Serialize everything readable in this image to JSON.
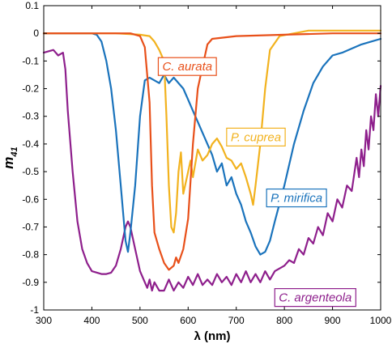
{
  "chart_data": {
    "type": "line",
    "xlabel": "λ (nm)",
    "ylabel": "m",
    "ylabel_subscript": "41",
    "xlim": [
      300,
      1000
    ],
    "ylim": [
      -1,
      0.1
    ],
    "xticks": [
      "300",
      "400",
      "500",
      "600",
      "700",
      "800",
      "900",
      "1000"
    ],
    "yticks": [
      "0.1",
      "0",
      "-0.1",
      "-0.2",
      "-0.3",
      "-0.4",
      "-0.5",
      "-0.6",
      "-0.7",
      "-0.8",
      "-0.9",
      "-1"
    ],
    "grid": false,
    "series": [
      {
        "name": "C. aurata",
        "color": "#E8501A",
        "points": [
          [
            300,
            0.0
          ],
          [
            400,
            0.0
          ],
          [
            480,
            0.0
          ],
          [
            500,
            -0.01
          ],
          [
            510,
            -0.05
          ],
          [
            520,
            -0.25
          ],
          [
            525,
            -0.55
          ],
          [
            530,
            -0.72
          ],
          [
            540,
            -0.78
          ],
          [
            550,
            -0.83
          ],
          [
            560,
            -0.855
          ],
          [
            570,
            -0.84
          ],
          [
            575,
            -0.81
          ],
          [
            580,
            -0.83
          ],
          [
            590,
            -0.78
          ],
          [
            600,
            -0.67
          ],
          [
            610,
            -0.4
          ],
          [
            615,
            -0.3
          ],
          [
            620,
            -0.2
          ],
          [
            630,
            -0.12
          ],
          [
            640,
            -0.04
          ],
          [
            650,
            -0.02
          ],
          [
            700,
            -0.01
          ],
          [
            800,
            -0.005
          ],
          [
            900,
            0.0
          ],
          [
            1000,
            0.0
          ]
        ]
      },
      {
        "name": "P. cuprea",
        "color": "#F2B21E",
        "points": [
          [
            300,
            0.0
          ],
          [
            450,
            0.0
          ],
          [
            500,
            -0.005
          ],
          [
            520,
            -0.01
          ],
          [
            530,
            -0.03
          ],
          [
            540,
            -0.06
          ],
          [
            550,
            -0.1
          ],
          [
            555,
            -0.3
          ],
          [
            560,
            -0.55
          ],
          [
            565,
            -0.7
          ],
          [
            570,
            -0.72
          ],
          [
            575,
            -0.65
          ],
          [
            580,
            -0.5
          ],
          [
            585,
            -0.43
          ],
          [
            590,
            -0.58
          ],
          [
            600,
            -0.5
          ],
          [
            605,
            -0.46
          ],
          [
            610,
            -0.52
          ],
          [
            620,
            -0.42
          ],
          [
            630,
            -0.46
          ],
          [
            640,
            -0.44
          ],
          [
            650,
            -0.4
          ],
          [
            660,
            -0.38
          ],
          [
            670,
            -0.41
          ],
          [
            680,
            -0.45
          ],
          [
            690,
            -0.46
          ],
          [
            700,
            -0.49
          ],
          [
            710,
            -0.47
          ],
          [
            720,
            -0.52
          ],
          [
            730,
            -0.58
          ],
          [
            735,
            -0.62
          ],
          [
            740,
            -0.55
          ],
          [
            750,
            -0.4
          ],
          [
            760,
            -0.2
          ],
          [
            770,
            -0.06
          ],
          [
            790,
            -0.01
          ],
          [
            850,
            0.01
          ],
          [
            1000,
            0.01
          ]
        ]
      },
      {
        "name": "P. mirifica",
        "color": "#1A73BC",
        "points": [
          [
            300,
            0.0
          ],
          [
            400,
            0.0
          ],
          [
            410,
            -0.005
          ],
          [
            420,
            -0.03
          ],
          [
            430,
            -0.1
          ],
          [
            440,
            -0.2
          ],
          [
            450,
            -0.35
          ],
          [
            460,
            -0.55
          ],
          [
            470,
            -0.75
          ],
          [
            475,
            -0.79
          ],
          [
            480,
            -0.72
          ],
          [
            490,
            -0.55
          ],
          [
            500,
            -0.3
          ],
          [
            510,
            -0.17
          ],
          [
            520,
            -0.16
          ],
          [
            540,
            -0.18
          ],
          [
            550,
            -0.15
          ],
          [
            560,
            -0.18
          ],
          [
            570,
            -0.16
          ],
          [
            590,
            -0.2
          ],
          [
            600,
            -0.24
          ],
          [
            610,
            -0.28
          ],
          [
            620,
            -0.32
          ],
          [
            630,
            -0.36
          ],
          [
            640,
            -0.4
          ],
          [
            650,
            -0.44
          ],
          [
            660,
            -0.5
          ],
          [
            670,
            -0.47
          ],
          [
            680,
            -0.55
          ],
          [
            690,
            -0.52
          ],
          [
            700,
            -0.58
          ],
          [
            710,
            -0.62
          ],
          [
            720,
            -0.68
          ],
          [
            730,
            -0.72
          ],
          [
            740,
            -0.77
          ],
          [
            750,
            -0.8
          ],
          [
            760,
            -0.79
          ],
          [
            770,
            -0.75
          ],
          [
            780,
            -0.68
          ],
          [
            800,
            -0.55
          ],
          [
            820,
            -0.4
          ],
          [
            840,
            -0.28
          ],
          [
            860,
            -0.18
          ],
          [
            880,
            -0.12
          ],
          [
            900,
            -0.08
          ],
          [
            920,
            -0.07
          ],
          [
            940,
            -0.055
          ],
          [
            960,
            -0.04
          ],
          [
            980,
            -0.03
          ],
          [
            1000,
            -0.02
          ]
        ]
      },
      {
        "name": "C. argenteola",
        "color": "#8E1F8C",
        "points": [
          [
            300,
            -0.07
          ],
          [
            320,
            -0.06
          ],
          [
            330,
            -0.08
          ],
          [
            340,
            -0.07
          ],
          [
            345,
            -0.13
          ],
          [
            350,
            -0.28
          ],
          [
            360,
            -0.5
          ],
          [
            370,
            -0.68
          ],
          [
            380,
            -0.78
          ],
          [
            390,
            -0.83
          ],
          [
            400,
            -0.86
          ],
          [
            420,
            -0.87
          ],
          [
            430,
            -0.87
          ],
          [
            440,
            -0.865
          ],
          [
            450,
            -0.84
          ],
          [
            460,
            -0.78
          ],
          [
            470,
            -0.7
          ],
          [
            475,
            -0.68
          ],
          [
            480,
            -0.7
          ],
          [
            490,
            -0.78
          ],
          [
            500,
            -0.86
          ],
          [
            510,
            -0.9
          ],
          [
            515,
            -0.92
          ],
          [
            520,
            -0.89
          ],
          [
            525,
            -0.93
          ],
          [
            530,
            -0.9
          ],
          [
            540,
            -0.93
          ],
          [
            550,
            -0.93
          ],
          [
            560,
            -0.89
          ],
          [
            570,
            -0.93
          ],
          [
            580,
            -0.9
          ],
          [
            590,
            -0.92
          ],
          [
            600,
            -0.88
          ],
          [
            610,
            -0.91
          ],
          [
            620,
            -0.87
          ],
          [
            630,
            -0.91
          ],
          [
            640,
            -0.89
          ],
          [
            650,
            -0.91
          ],
          [
            660,
            -0.87
          ],
          [
            670,
            -0.9
          ],
          [
            680,
            -0.88
          ],
          [
            690,
            -0.91
          ],
          [
            700,
            -0.87
          ],
          [
            710,
            -0.9
          ],
          [
            720,
            -0.86
          ],
          [
            730,
            -0.9
          ],
          [
            740,
            -0.87
          ],
          [
            750,
            -0.9
          ],
          [
            760,
            -0.86
          ],
          [
            770,
            -0.89
          ],
          [
            780,
            -0.86
          ],
          [
            790,
            -0.85
          ],
          [
            800,
            -0.84
          ],
          [
            810,
            -0.82
          ],
          [
            820,
            -0.83
          ],
          [
            830,
            -0.78
          ],
          [
            840,
            -0.8
          ],
          [
            850,
            -0.74
          ],
          [
            860,
            -0.76
          ],
          [
            870,
            -0.7
          ],
          [
            880,
            -0.73
          ],
          [
            890,
            -0.65
          ],
          [
            900,
            -0.68
          ],
          [
            910,
            -0.6
          ],
          [
            920,
            -0.63
          ],
          [
            930,
            -0.55
          ],
          [
            940,
            -0.57
          ],
          [
            950,
            -0.45
          ],
          [
            955,
            -0.52
          ],
          [
            960,
            -0.42
          ],
          [
            965,
            -0.48
          ],
          [
            970,
            -0.35
          ],
          [
            975,
            -0.42
          ],
          [
            980,
            -0.3
          ],
          [
            985,
            -0.35
          ],
          [
            990,
            -0.22
          ],
          [
            995,
            -0.3
          ],
          [
            1000,
            -0.19
          ]
        ]
      }
    ],
    "legend": [
      {
        "name": "C. aurata",
        "color": "#E8501A",
        "placement": "upper-center"
      },
      {
        "name": "P. cuprea",
        "color": "#F2B21E",
        "placement": "center-right"
      },
      {
        "name": "P. mirifica",
        "color": "#1A73BC",
        "placement": "right"
      },
      {
        "name": "C. argenteola",
        "color": "#8E1F8C",
        "placement": "bottom-right"
      }
    ]
  }
}
